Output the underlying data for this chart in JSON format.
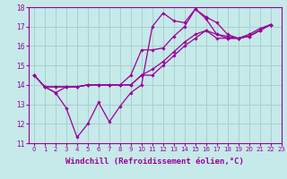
{
  "bg_color": "#c6e9e9",
  "grid_color": "#a8d0d0",
  "line_color": "#990099",
  "marker": "D",
  "markersize": 1.8,
  "linewidth": 0.9,
  "xlabel": "Windchill (Refroidissement éolien,°C)",
  "xlabel_fontsize": 6.5,
  "xtick_fontsize": 5.0,
  "ytick_fontsize": 5.5,
  "ylim": [
    11,
    18
  ],
  "xlim": [
    -0.5,
    23
  ],
  "series": [
    [
      14.5,
      13.9,
      13.6,
      12.8,
      11.3,
      12.0,
      13.1,
      12.1,
      12.9,
      13.6,
      14.0,
      17.0,
      17.7,
      17.3,
      17.2,
      17.9,
      17.4,
      16.6,
      16.4,
      16.4,
      16.6,
      16.9,
      17.1
    ],
    [
      14.5,
      13.9,
      13.6,
      13.9,
      13.9,
      14.0,
      14.0,
      14.0,
      14.0,
      14.5,
      15.8,
      15.8,
      15.9,
      16.5,
      17.0,
      17.9,
      17.5,
      17.2,
      16.6,
      16.4,
      16.5,
      16.8,
      17.1
    ],
    [
      14.5,
      13.9,
      13.9,
      13.9,
      13.9,
      14.0,
      14.0,
      14.0,
      14.0,
      14.0,
      14.5,
      14.8,
      15.2,
      15.7,
      16.2,
      16.6,
      16.8,
      16.6,
      16.5,
      16.4,
      16.5,
      16.8,
      17.1
    ],
    [
      14.5,
      13.9,
      13.9,
      13.9,
      13.9,
      14.0,
      14.0,
      14.0,
      14.0,
      14.0,
      14.5,
      14.5,
      15.0,
      15.5,
      16.0,
      16.4,
      16.8,
      16.4,
      16.4,
      16.4,
      16.5,
      16.8,
      17.1
    ]
  ]
}
